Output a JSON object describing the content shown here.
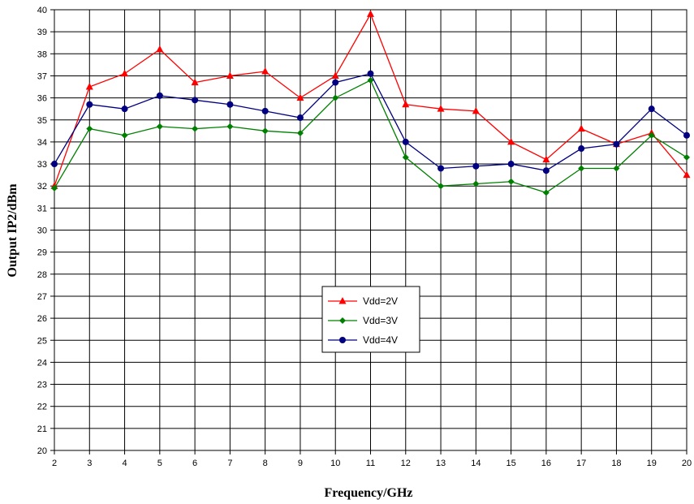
{
  "chart_data": {
    "type": "line",
    "xlabel": "Frequency/GHz",
    "ylabel": "Output IP2/dBm",
    "xlim": [
      2,
      20
    ],
    "ylim": [
      20,
      40
    ],
    "x": [
      2,
      3,
      4,
      5,
      6,
      7,
      8,
      9,
      10,
      11,
      12,
      13,
      14,
      15,
      16,
      17,
      18,
      19,
      20
    ],
    "y_ticks": [
      20,
      21,
      22,
      23,
      24,
      25,
      26,
      27,
      28,
      29,
      30,
      31,
      32,
      33,
      34,
      35,
      36,
      37,
      38,
      39,
      40
    ],
    "grid": true,
    "legend_position": "center",
    "series": [
      {
        "name": "Vdd=2V",
        "color": "#ff0000",
        "marker": "triangle",
        "values": [
          32.0,
          36.5,
          37.1,
          38.2,
          36.7,
          37.0,
          37.2,
          36.0,
          37.0,
          39.8,
          35.7,
          35.5,
          35.4,
          34.0,
          33.2,
          34.6,
          33.9,
          34.4,
          32.5
        ]
      },
      {
        "name": "Vdd=3V",
        "color": "#008000",
        "marker": "diamond",
        "values": [
          31.9,
          34.6,
          34.3,
          34.7,
          34.6,
          34.7,
          34.5,
          34.4,
          36.0,
          36.8,
          33.3,
          32.0,
          32.1,
          32.2,
          31.7,
          32.8,
          32.8,
          34.3,
          33.3
        ]
      },
      {
        "name": "Vdd=4V",
        "color": "#000080",
        "marker": "circle",
        "values": [
          33.0,
          35.7,
          35.5,
          36.1,
          35.9,
          35.7,
          35.4,
          35.1,
          36.7,
          37.1,
          34.0,
          32.8,
          32.9,
          33.0,
          32.7,
          33.7,
          33.9,
          35.5,
          34.3
        ]
      }
    ]
  }
}
